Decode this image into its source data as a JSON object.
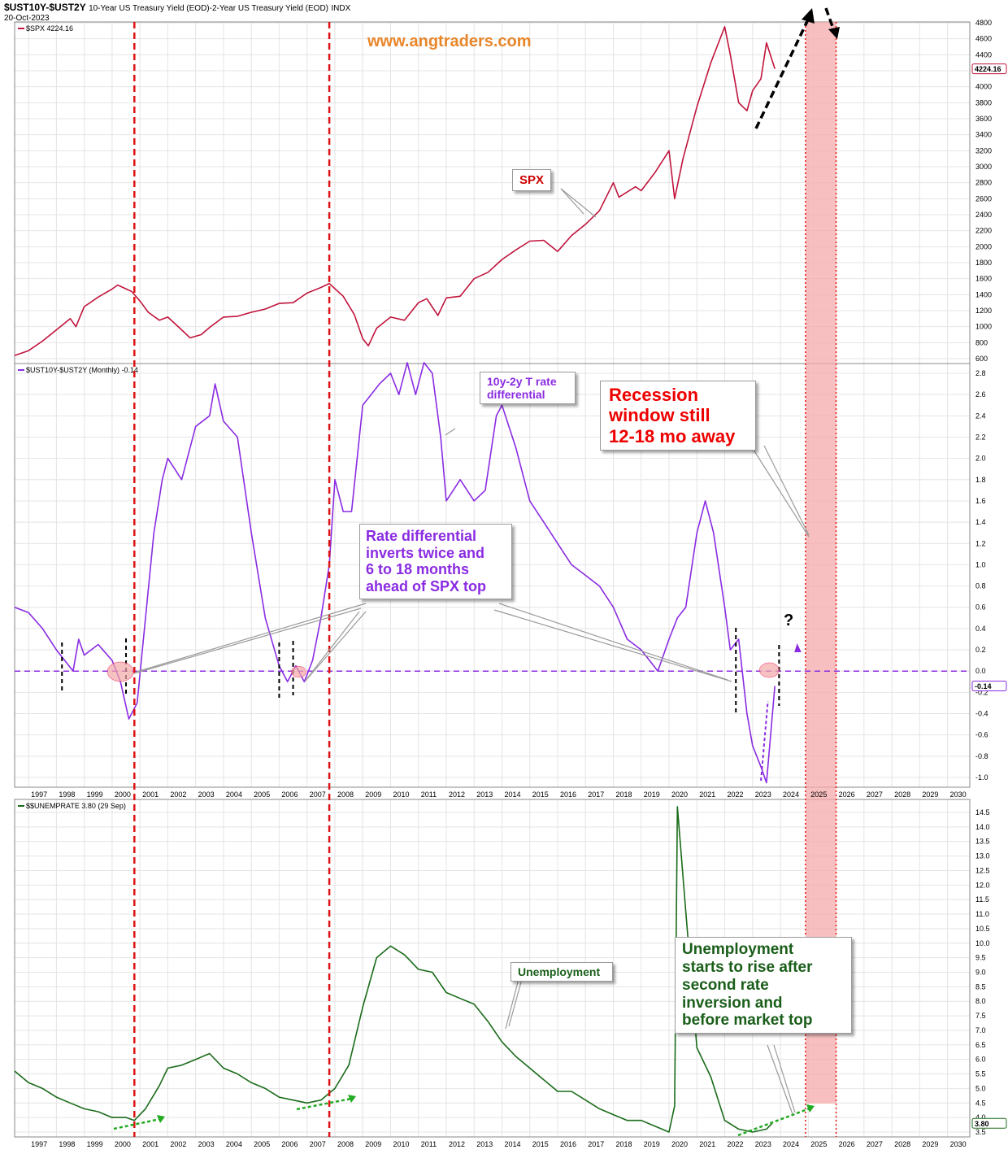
{
  "header": {
    "symbol": "$UST10Y-$UST2Y",
    "description": "10-Year US Treasury Yield (EOD)-2-Year US Treasury Yield (EOD)",
    "exchange": "INDX",
    "date": "20-Oct-2023",
    "watermark": "www.angtraders.com"
  },
  "panels": {
    "spx": {
      "legend": "$SPX 4224.16",
      "last_label": "4224.16",
      "color": "#c0143c"
    },
    "spread": {
      "legend": "$UST10Y-$UST2Y (Monthly) -0.14",
      "last_label": "-0.14",
      "color": "#8a2be2"
    },
    "unemp": {
      "legend": "$$UNEMPRATE 3.80 (29 Sep)",
      "last_label": "3.80",
      "color": "#1a6b1a"
    }
  },
  "annotations": {
    "spx_label": "SPX",
    "spread_label": "10y-2y T rate\ndifferential",
    "recession": "Recession\nwindow still\n12-18 mo away",
    "rate_diff": "Rate differential\ninverts twice and\n6 to 18 months\nahead of SPX top",
    "question_mark": "?",
    "unemp_label": "Unemployment",
    "unemp_note": "Unemployment\nstarts to rise after\nsecond rate\ninversion and\nbefore market top"
  },
  "chart_data": [
    {
      "type": "line",
      "title": "$SPX 4224.16",
      "x_range": [
        1996.5,
        2030.8
      ],
      "ylim": [
        600,
        4800
      ],
      "y_ticks": [
        600,
        800,
        1000,
        1200,
        1400,
        1600,
        1800,
        2000,
        2200,
        2400,
        2600,
        2800,
        3000,
        3200,
        3400,
        3600,
        3800,
        4000,
        4200,
        4400,
        4600,
        4800
      ],
      "x": [
        1996.5,
        1997.0,
        1997.5,
        1998.0,
        1998.5,
        1998.7,
        1999.0,
        1999.5,
        2000.0,
        2000.2,
        2000.7,
        2001.0,
        2001.3,
        2001.7,
        2002.0,
        2002.5,
        2002.8,
        2003.2,
        2003.5,
        2004.0,
        2004.5,
        2005.0,
        2005.5,
        2006.0,
        2006.5,
        2007.0,
        2007.5,
        2007.8,
        2008.3,
        2008.7,
        2009.0,
        2009.2,
        2009.5,
        2010.0,
        2010.5,
        2011.0,
        2011.3,
        2011.7,
        2012.0,
        2012.5,
        2013.0,
        2013.5,
        2014.0,
        2014.5,
        2015.0,
        2015.5,
        2016.0,
        2016.5,
        2017.0,
        2017.5,
        2018.0,
        2018.2,
        2018.8,
        2019.0,
        2019.5,
        2020.0,
        2020.2,
        2020.5,
        2021.0,
        2021.5,
        2022.0,
        2022.2,
        2022.5,
        2022.8,
        2023.0,
        2023.3,
        2023.5,
        2023.8
      ],
      "values": [
        640,
        700,
        820,
        960,
        1100,
        1000,
        1250,
        1370,
        1470,
        1520,
        1440,
        1320,
        1180,
        1080,
        1120,
        960,
        860,
        900,
        990,
        1120,
        1130,
        1180,
        1220,
        1290,
        1300,
        1420,
        1490,
        1540,
        1380,
        1150,
        850,
        760,
        980,
        1120,
        1080,
        1300,
        1350,
        1140,
        1360,
        1380,
        1600,
        1680,
        1840,
        1960,
        2070,
        2080,
        1940,
        2140,
        2280,
        2450,
        2800,
        2620,
        2750,
        2700,
        2930,
        3200,
        2600,
        3100,
        3750,
        4300,
        4750,
        4400,
        3800,
        3700,
        3950,
        4100,
        4550,
        4224.16
      ],
      "last_value": 4224.16
    },
    {
      "type": "line",
      "title": "$UST10Y-$UST2Y (Monthly) -0.14",
      "x_range": [
        1996.5,
        2030.8
      ],
      "ylim": [
        -1.0,
        2.8
      ],
      "y_ticks": [
        -1.0,
        -0.8,
        -0.6,
        -0.4,
        -0.2,
        0.0,
        0.2,
        0.4,
        0.6,
        0.8,
        1.0,
        1.2,
        1.4,
        1.6,
        1.8,
        2.0,
        2.2,
        2.4,
        2.6,
        2.8
      ],
      "reference_line": 0.0,
      "x": [
        1996.5,
        1997.0,
        1997.5,
        1998.0,
        1998.3,
        1998.6,
        1998.8,
        1999.0,
        1999.5,
        2000.0,
        2000.3,
        2000.6,
        2000.9,
        2001.2,
        2001.5,
        2001.8,
        2002.0,
        2002.5,
        2003.0,
        2003.5,
        2003.7,
        2004.0,
        2004.5,
        2005.0,
        2005.5,
        2006.0,
        2006.3,
        2006.6,
        2006.9,
        2007.2,
        2007.5,
        2007.8,
        2008.0,
        2008.3,
        2008.6,
        2009.0,
        2009.3,
        2009.6,
        2010.0,
        2010.3,
        2010.6,
        2010.9,
        2011.2,
        2011.5,
        2011.8,
        2012.0,
        2012.5,
        2013.0,
        2013.4,
        2013.8,
        2014.0,
        2014.5,
        2015.0,
        2015.5,
        2016.0,
        2016.5,
        2017.0,
        2017.5,
        2018.0,
        2018.5,
        2019.0,
        2019.3,
        2019.6,
        2020.0,
        2020.3,
        2020.6,
        2021.0,
        2021.3,
        2021.6,
        2022.0,
        2022.2,
        2022.5,
        2022.8,
        2023.0,
        2023.3,
        2023.5,
        2023.8
      ],
      "values": [
        0.6,
        0.55,
        0.4,
        0.2,
        0.1,
        0.0,
        0.3,
        0.15,
        0.25,
        0.1,
        -0.1,
        -0.45,
        -0.3,
        0.5,
        1.3,
        1.8,
        2.0,
        1.8,
        2.3,
        2.4,
        2.7,
        2.35,
        2.2,
        1.3,
        0.5,
        0.05,
        -0.1,
        0.05,
        -0.1,
        0.1,
        0.5,
        1.0,
        1.8,
        1.5,
        1.5,
        2.5,
        2.6,
        2.7,
        2.8,
        2.6,
        2.9,
        2.6,
        2.9,
        2.8,
        2.2,
        1.6,
        1.8,
        1.6,
        1.7,
        2.4,
        2.5,
        2.1,
        1.6,
        1.4,
        1.2,
        1.0,
        0.9,
        0.8,
        0.6,
        0.3,
        0.2,
        0.1,
        0.0,
        0.3,
        0.5,
        0.6,
        1.3,
        1.6,
        1.3,
        0.6,
        0.2,
        0.3,
        -0.4,
        -0.7,
        -0.9,
        -1.05,
        -0.14
      ],
      "last_value": -0.14
    },
    {
      "type": "line",
      "title": "$$UNEMPRATE 3.80 (29 Sep)",
      "x_range": [
        1996.5,
        2030.8
      ],
      "ylim": [
        3.5,
        14.5
      ],
      "y_ticks": [
        3.5,
        4.0,
        4.5,
        5.0,
        5.5,
        6.0,
        6.5,
        7.0,
        7.5,
        8.0,
        8.5,
        9.0,
        9.5,
        10.0,
        10.5,
        11.0,
        11.5,
        12.0,
        12.5,
        13.0,
        13.5,
        14.0,
        14.5
      ],
      "x": [
        1996.5,
        1997.0,
        1997.5,
        1998.0,
        1998.5,
        1999.0,
        1999.5,
        2000.0,
        2000.5,
        2000.8,
        2001.2,
        2001.7,
        2002.0,
        2002.5,
        2003.0,
        2003.5,
        2004.0,
        2004.5,
        2005.0,
        2005.5,
        2006.0,
        2006.5,
        2007.0,
        2007.5,
        2008.0,
        2008.5,
        2009.0,
        2009.5,
        2010.0,
        2010.5,
        2011.0,
        2011.5,
        2012.0,
        2012.5,
        2013.0,
        2013.5,
        2014.0,
        2014.5,
        2015.0,
        2015.5,
        2016.0,
        2016.5,
        2017.0,
        2017.5,
        2018.0,
        2018.5,
        2019.0,
        2019.5,
        2020.0,
        2020.2,
        2020.3,
        2020.6,
        2021.0,
        2021.5,
        2022.0,
        2022.5,
        2023.0,
        2023.5,
        2023.7
      ],
      "values": [
        5.6,
        5.2,
        5.0,
        4.7,
        4.5,
        4.3,
        4.2,
        4.0,
        4.0,
        3.9,
        4.3,
        5.1,
        5.7,
        5.8,
        6.0,
        6.2,
        5.7,
        5.5,
        5.2,
        5.0,
        4.7,
        4.6,
        4.5,
        4.6,
        5.0,
        5.8,
        7.8,
        9.5,
        9.9,
        9.6,
        9.1,
        9.0,
        8.3,
        8.1,
        7.9,
        7.3,
        6.6,
        6.1,
        5.7,
        5.3,
        4.9,
        4.9,
        4.6,
        4.3,
        4.1,
        3.9,
        3.9,
        3.7,
        3.5,
        4.4,
        14.7,
        11.1,
        6.4,
        5.4,
        3.9,
        3.6,
        3.5,
        3.6,
        3.8
      ],
      "last_value": 3.8
    }
  ],
  "x_axis_labels": [
    "1997",
    "1998",
    "1999",
    "2000",
    "2001",
    "2002",
    "2003",
    "2004",
    "2005",
    "2006",
    "2007",
    "2008",
    "2009",
    "2010",
    "2011",
    "2012",
    "2013",
    "2014",
    "2015",
    "2016",
    "2017",
    "2018",
    "2019",
    "2020",
    "2021",
    "2022",
    "2023",
    "2024",
    "2025",
    "2026",
    "2027",
    "2028",
    "2029",
    "2030"
  ],
  "markers": {
    "red_vertical_years": [
      2000.8,
      2007.8
    ],
    "recession_window": [
      2024.9,
      2026.0
    ]
  }
}
